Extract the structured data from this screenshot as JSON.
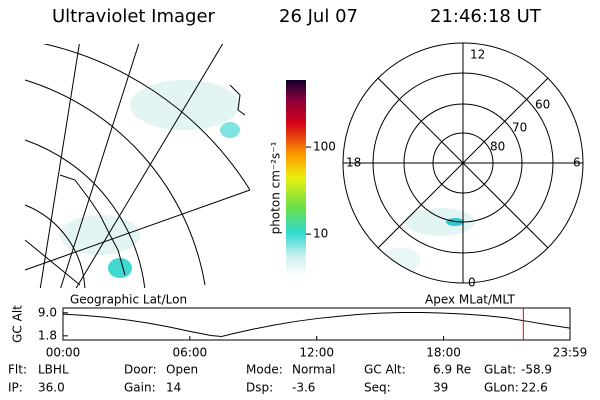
{
  "header": {
    "instrument": "Ultraviolet Imager",
    "date": "26 Jul 07",
    "time": "21:46:18 UT"
  },
  "colorbar": {
    "label": "photon cm⁻²s⁻¹",
    "scale": "log",
    "lim": [
      3.3,
      590
    ],
    "ticks": [
      10,
      100
    ]
  },
  "polar": {
    "mlt_labels": [
      "12",
      "18",
      "6",
      "0"
    ],
    "lat_labels": [
      "60",
      "70",
      "80"
    ]
  },
  "map_label": "Geographic Lat/Lon",
  "polar_label": "Apex MLat/MLT",
  "altitude_plot": {
    "ylabel": "GC Alt",
    "ylim": [
      0.5,
      10.5
    ],
    "yticks": [
      {
        "value": 9.0,
        "label": "9.0"
      },
      {
        "value": 1.8,
        "label": "1.8"
      }
    ],
    "xlim": [
      0,
      23.98
    ],
    "xticks": [
      {
        "value": 0,
        "label": "00:00"
      },
      {
        "value": 6,
        "label": "06:00"
      },
      {
        "value": 12,
        "label": "12:00"
      },
      {
        "value": 18,
        "label": "18:00"
      },
      {
        "value": 23.98,
        "label": "23:59"
      }
    ],
    "x": [
      0,
      1,
      2,
      3,
      4,
      5,
      6,
      7,
      7.5,
      8,
      9,
      10,
      11,
      12,
      13,
      14,
      15,
      16,
      17,
      18,
      19,
      20,
      21,
      22,
      23,
      23.98
    ],
    "values": [
      8.6,
      8.2,
      7.6,
      6.8,
      5.8,
      4.6,
      3.2,
      1.9,
      1.6,
      2.4,
      3.9,
      5.2,
      6.3,
      7.2,
      7.9,
      8.5,
      8.9,
      9.1,
      9.1,
      8.9,
      8.6,
      8.1,
      7.4,
      6.3,
      5.2,
      4.2
    ]
  },
  "footer": [
    [
      {
        "label": "Flt:",
        "value": "LBHL"
      },
      {
        "label": "Door:",
        "value": "Open"
      },
      {
        "label": "Mode:",
        "value": "Normal"
      },
      {
        "label": "GC Alt:",
        "value": "6.9 Re"
      },
      {
        "label": "GLat:",
        "value": "-58.9"
      }
    ],
    [
      {
        "label": "IP:",
        "value": "36.0"
      },
      {
        "label": "Gain:",
        "value": "14"
      },
      {
        "label": "Dsp:",
        "value": "-3.6"
      },
      {
        "label": "Seq:",
        "value": "39"
      },
      {
        "label": "GLon:",
        "value": "22.6"
      }
    ]
  ]
}
